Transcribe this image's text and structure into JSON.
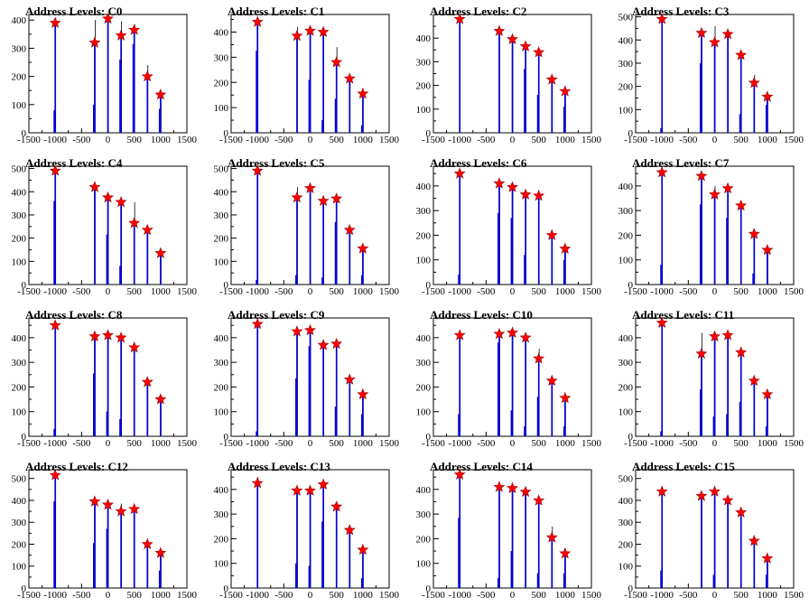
{
  "title_prefix": "Address Levels: ",
  "colors": {
    "histogram": "#0000dd",
    "peak_marker": "#ff0000",
    "marker_outline": "#990000",
    "axis": "#000000"
  },
  "marker_icon": "star-icon",
  "xlim": [
    -1500,
    1500
  ],
  "x_ticks": [
    -1500,
    -1000,
    -500,
    0,
    500,
    1000,
    1500
  ],
  "x_tick_labels": [
    "-1500",
    "-1000",
    "-500",
    "0",
    "500",
    "1000",
    "1500"
  ],
  "chart_data": [
    {
      "type": "bar",
      "title": "Address Levels: C0",
      "ylim": [
        0,
        420
      ],
      "y_ticks": [
        0,
        100,
        200,
        300,
        400
      ],
      "y_tick_labels": [
        "0",
        "100",
        "200",
        "300",
        "400"
      ],
      "levels": [
        -1000,
        -250,
        0,
        250,
        500,
        750,
        1000
      ],
      "peaks": [
        390,
        320,
        405,
        345,
        365,
        200,
        135
      ],
      "tails": [
        390,
        400,
        405,
        395,
        385,
        240,
        135
      ],
      "secondary": [
        80,
        100,
        0,
        260,
        315,
        0,
        85
      ]
    },
    {
      "type": "bar",
      "title": "Address Levels: C1",
      "ylim": [
        0,
        470
      ],
      "y_ticks": [
        0,
        100,
        200,
        300,
        400
      ],
      "y_tick_labels": [
        "0",
        "100",
        "200",
        "300",
        "400"
      ],
      "levels": [
        -1000,
        -250,
        0,
        250,
        500,
        750,
        1000
      ],
      "peaks": [
        440,
        385,
        405,
        400,
        280,
        215,
        155
      ],
      "tails": [
        440,
        420,
        405,
        400,
        340,
        215,
        155
      ],
      "secondary": [
        325,
        0,
        210,
        50,
        135,
        0,
        30
      ]
    },
    {
      "type": "bar",
      "title": "Address Levels: C2",
      "ylim": [
        0,
        500
      ],
      "y_ticks": [
        0,
        100,
        200,
        300,
        400
      ],
      "y_tick_labels": [
        "0",
        "100",
        "200",
        "300",
        "400"
      ],
      "levels": [
        -1000,
        -250,
        0,
        250,
        500,
        750,
        1000
      ],
      "peaks": [
        480,
        430,
        395,
        365,
        340,
        225,
        175
      ],
      "tails": [
        480,
        430,
        395,
        365,
        340,
        225,
        175
      ],
      "secondary": [
        0,
        0,
        0,
        270,
        160,
        0,
        110
      ]
    },
    {
      "type": "bar",
      "title": "Address Levels: C3",
      "ylim": [
        0,
        510
      ],
      "y_ticks": [
        0,
        100,
        200,
        300,
        400,
        500
      ],
      "y_tick_labels": [
        "0",
        "100",
        "200",
        "300",
        "400",
        "500"
      ],
      "levels": [
        -1000,
        -250,
        0,
        250,
        500,
        750,
        1000
      ],
      "peaks": [
        490,
        430,
        390,
        425,
        335,
        215,
        155
      ],
      "tails": [
        490,
        440,
        460,
        425,
        335,
        250,
        155
      ],
      "secondary": [
        20,
        300,
        0,
        0,
        80,
        0,
        120
      ]
    },
    {
      "type": "bar",
      "title": "Address Levels: C4",
      "ylim": [
        0,
        510
      ],
      "y_ticks": [
        0,
        100,
        200,
        300,
        400,
        500
      ],
      "y_tick_labels": [
        "0",
        "100",
        "200",
        "300",
        "400",
        "500"
      ],
      "levels": [
        -1000,
        -250,
        0,
        250,
        500,
        750,
        1000
      ],
      "peaks": [
        490,
        420,
        375,
        355,
        265,
        235,
        135
      ],
      "tails": [
        490,
        420,
        375,
        355,
        355,
        235,
        135
      ],
      "secondary": [
        360,
        0,
        215,
        80,
        0,
        0,
        0
      ]
    },
    {
      "type": "bar",
      "title": "Address Levels: C5",
      "ylim": [
        0,
        510
      ],
      "y_ticks": [
        0,
        100,
        200,
        300,
        400,
        500
      ],
      "y_tick_labels": [
        "0",
        "100",
        "200",
        "300",
        "400",
        "500"
      ],
      "levels": [
        -1000,
        -250,
        0,
        250,
        500,
        750,
        1000
      ],
      "peaks": [
        490,
        375,
        415,
        360,
        370,
        235,
        155
      ],
      "tails": [
        490,
        420,
        415,
        360,
        370,
        235,
        155
      ],
      "secondary": [
        20,
        40,
        0,
        30,
        270,
        0,
        40
      ]
    },
    {
      "type": "bar",
      "title": "Address Levels: C6",
      "ylim": [
        0,
        480
      ],
      "y_ticks": [
        0,
        100,
        200,
        300,
        400
      ],
      "y_tick_labels": [
        "0",
        "100",
        "200",
        "300",
        "400"
      ],
      "levels": [
        -1000,
        -250,
        0,
        250,
        500,
        750,
        1000
      ],
      "peaks": [
        450,
        410,
        395,
        365,
        360,
        200,
        145
      ],
      "tails": [
        450,
        410,
        395,
        365,
        360,
        200,
        145
      ],
      "secondary": [
        40,
        290,
        270,
        120,
        0,
        0,
        100
      ]
    },
    {
      "type": "bar",
      "title": "Address Levels: C7",
      "ylim": [
        0,
        480
      ],
      "y_ticks": [
        0,
        100,
        200,
        300,
        400
      ],
      "y_tick_labels": [
        "0",
        "100",
        "200",
        "300",
        "400"
      ],
      "levels": [
        -1000,
        -250,
        0,
        250,
        500,
        750,
        1000
      ],
      "peaks": [
        455,
        440,
        365,
        390,
        320,
        205,
        140
      ],
      "tails": [
        455,
        440,
        400,
        390,
        335,
        205,
        140
      ],
      "secondary": [
        80,
        325,
        0,
        270,
        0,
        45,
        0
      ]
    },
    {
      "type": "bar",
      "title": "Address Levels: C8",
      "ylim": [
        0,
        480
      ],
      "y_ticks": [
        0,
        100,
        200,
        300,
        400
      ],
      "y_tick_labels": [
        "0",
        "100",
        "200",
        "300",
        "400"
      ],
      "levels": [
        -1000,
        -250,
        0,
        250,
        500,
        750,
        1000
      ],
      "peaks": [
        450,
        405,
        410,
        400,
        360,
        220,
        150
      ],
      "tails": [
        450,
        405,
        410,
        400,
        360,
        220,
        150
      ],
      "secondary": [
        30,
        255,
        100,
        70,
        0,
        0,
        0
      ]
    },
    {
      "type": "bar",
      "title": "Address Levels: C9",
      "ylim": [
        0,
        480
      ],
      "y_ticks": [
        0,
        100,
        200,
        300,
        400
      ],
      "y_tick_labels": [
        "0",
        "100",
        "200",
        "300",
        "400"
      ],
      "levels": [
        -1000,
        -250,
        0,
        250,
        500,
        750,
        1000
      ],
      "peaks": [
        455,
        425,
        430,
        370,
        375,
        230,
        170
      ],
      "tails": [
        455,
        425,
        430,
        385,
        375,
        230,
        170
      ],
      "secondary": [
        20,
        235,
        365,
        0,
        120,
        0,
        90
      ]
    },
    {
      "type": "bar",
      "title": "Address Levels: C10",
      "ylim": [
        0,
        480
      ],
      "y_ticks": [
        0,
        100,
        200,
        300,
        400
      ],
      "y_tick_labels": [
        "0",
        "100",
        "200",
        "300",
        "400"
      ],
      "levels": [
        -1000,
        -250,
        0,
        250,
        500,
        750,
        1000
      ],
      "peaks": [
        410,
        415,
        420,
        400,
        315,
        225,
        155
      ],
      "tails": [
        410,
        415,
        420,
        400,
        355,
        225,
        155
      ],
      "secondary": [
        90,
        380,
        105,
        40,
        160,
        0,
        40
      ]
    },
    {
      "type": "bar",
      "title": "Address Levels: C11",
      "ylim": [
        0,
        480
      ],
      "y_ticks": [
        0,
        100,
        200,
        300,
        400
      ],
      "y_tick_labels": [
        "0",
        "100",
        "200",
        "300",
        "400"
      ],
      "levels": [
        -1000,
        -250,
        0,
        250,
        500,
        750,
        1000
      ],
      "peaks": [
        460,
        335,
        405,
        410,
        340,
        225,
        170
      ],
      "tails": [
        460,
        420,
        405,
        410,
        340,
        225,
        170
      ],
      "secondary": [
        20,
        190,
        80,
        90,
        140,
        0,
        40
      ]
    },
    {
      "type": "bar",
      "title": "Address Levels: C12",
      "ylim": [
        0,
        540
      ],
      "y_ticks": [
        0,
        100,
        200,
        300,
        400,
        500
      ],
      "y_tick_labels": [
        "0",
        "100",
        "200",
        "300",
        "400",
        "500"
      ],
      "levels": [
        -1000,
        -250,
        0,
        250,
        500,
        750,
        1000
      ],
      "peaks": [
        515,
        395,
        380,
        350,
        360,
        200,
        160
      ],
      "tails": [
        515,
        395,
        380,
        385,
        360,
        200,
        160
      ],
      "secondary": [
        395,
        205,
        270,
        0,
        0,
        0,
        80
      ]
    },
    {
      "type": "bar",
      "title": "Address Levels: C13",
      "ylim": [
        0,
        480
      ],
      "y_ticks": [
        0,
        100,
        200,
        300,
        400
      ],
      "y_tick_labels": [
        "0",
        "100",
        "200",
        "300",
        "400"
      ],
      "levels": [
        -1000,
        -250,
        0,
        250,
        500,
        750,
        1000
      ],
      "peaks": [
        425,
        395,
        395,
        420,
        330,
        235,
        155
      ],
      "tails": [
        450,
        395,
        395,
        420,
        330,
        235,
        155
      ],
      "secondary": [
        0,
        100,
        90,
        270,
        0,
        0,
        40
      ]
    },
    {
      "type": "bar",
      "title": "Address Levels: C14",
      "ylim": [
        0,
        480
      ],
      "y_ticks": [
        0,
        100,
        200,
        300,
        400
      ],
      "y_tick_labels": [
        "0",
        "100",
        "200",
        "300",
        "400"
      ],
      "levels": [
        -1000,
        -250,
        0,
        250,
        500,
        750,
        1000
      ],
      "peaks": [
        460,
        410,
        405,
        390,
        355,
        205,
        140
      ],
      "tails": [
        460,
        410,
        405,
        390,
        355,
        250,
        140
      ],
      "secondary": [
        285,
        40,
        150,
        0,
        60,
        0,
        60
      ]
    },
    {
      "type": "bar",
      "title": "Address Levels: C15",
      "ylim": [
        0,
        540
      ],
      "y_ticks": [
        0,
        100,
        200,
        300,
        400,
        500
      ],
      "y_tick_labels": [
        "0",
        "100",
        "200",
        "300",
        "400",
        "500"
      ],
      "levels": [
        -1000,
        -250,
        0,
        250,
        500,
        750,
        1000
      ],
      "peaks": [
        440,
        420,
        440,
        400,
        345,
        215,
        135
      ],
      "tails": [
        440,
        420,
        440,
        400,
        345,
        215,
        135
      ],
      "secondary": [
        80,
        0,
        60,
        0,
        0,
        0,
        60
      ]
    }
  ]
}
